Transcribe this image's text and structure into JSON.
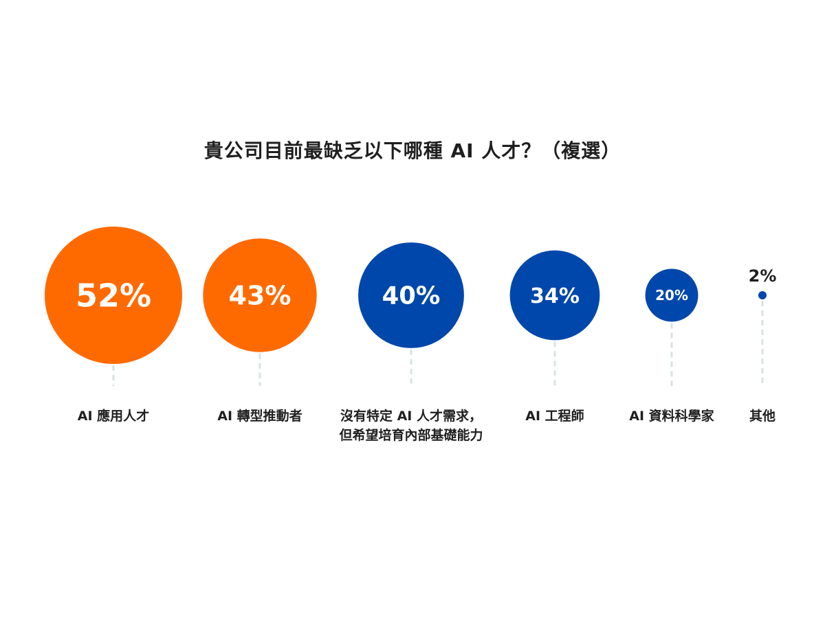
{
  "chart_data": {
    "type": "bubble",
    "title": "貴公司目前最缺乏以下哪種 AI 人才？（複選）",
    "categories": [
      [
        "AI 應用人才"
      ],
      [
        "AI 轉型推動者"
      ],
      [
        "沒有特定 AI 人才需求，",
        "但希望培育內部基礎能力"
      ],
      [
        "AI 工程師"
      ],
      [
        "AI 資料科學家"
      ],
      [
        "其他"
      ]
    ],
    "values": [
      52,
      43,
      40,
      34,
      20,
      2
    ],
    "value_labels": [
      "52%",
      "43%",
      "40%",
      "34%",
      "20%",
      "2%"
    ],
    "colors": [
      "#ff6a00",
      "#ff6a00",
      "#0047ab",
      "#0047ab",
      "#0047ab",
      "#0047ab"
    ],
    "guide_color": "#d7e2e4",
    "legend": "none",
    "grid": false
  }
}
